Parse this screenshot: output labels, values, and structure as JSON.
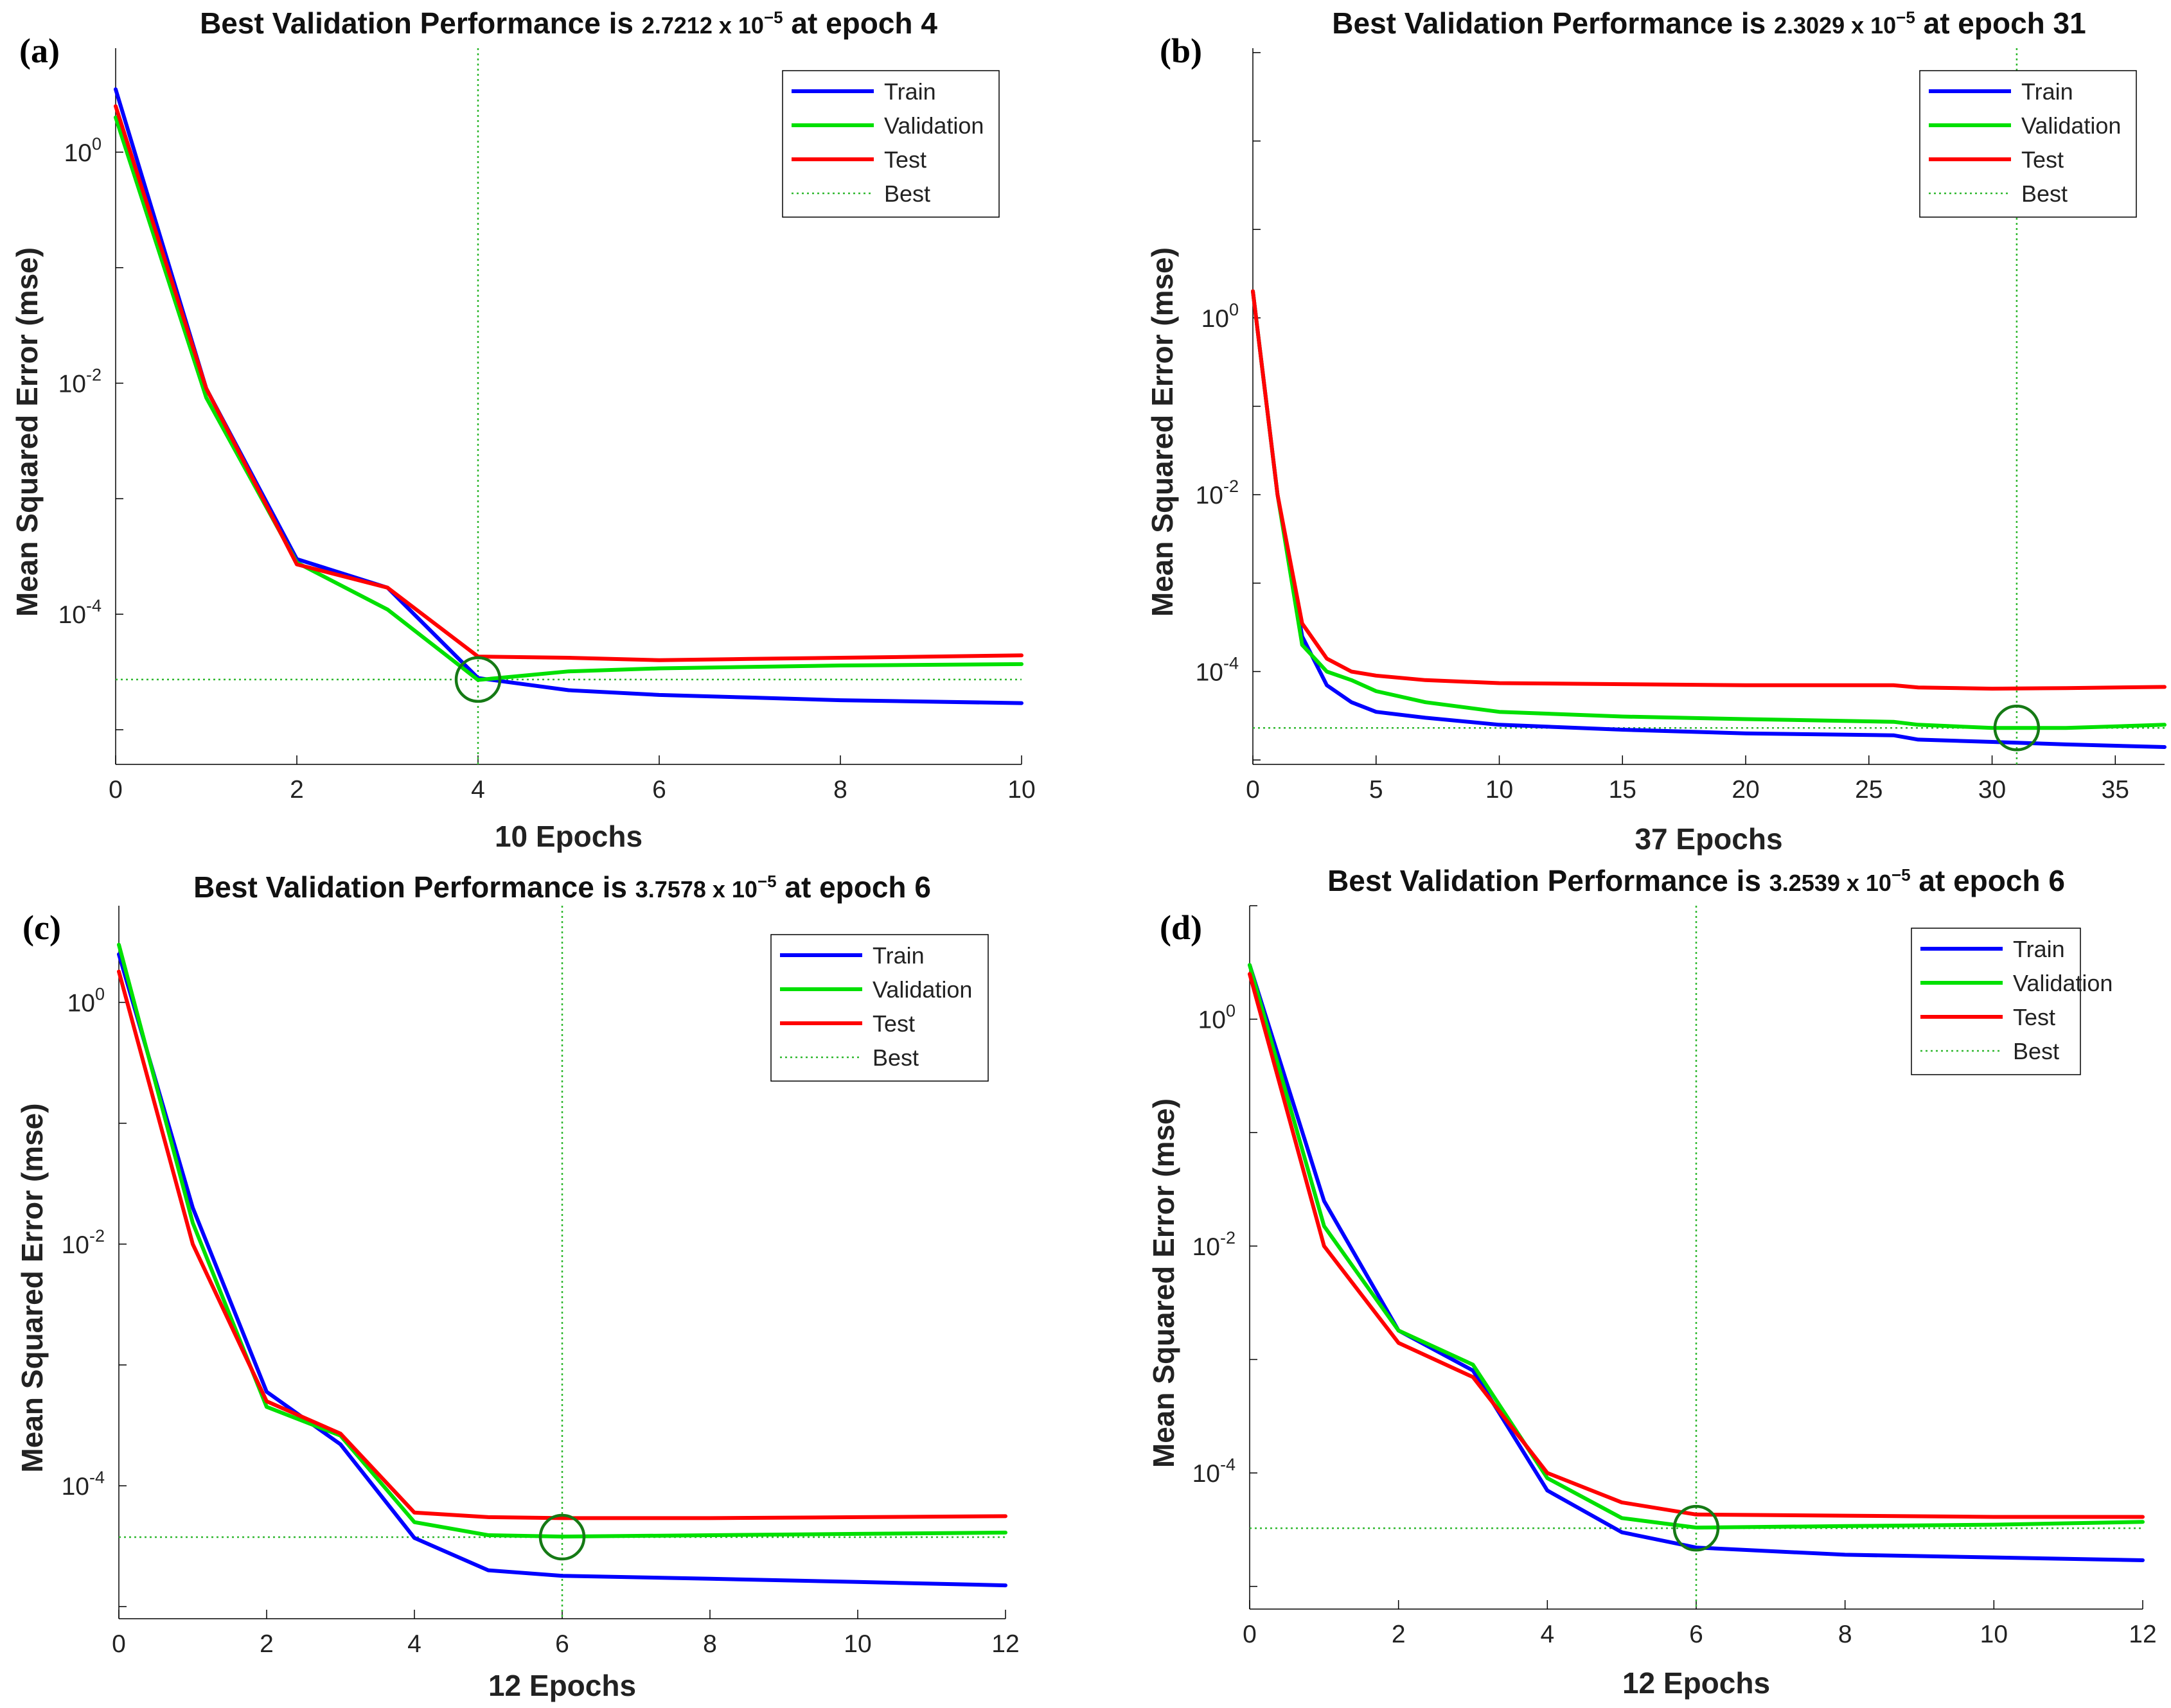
{
  "colors": {
    "train": "#0000ff",
    "validation": "#00e000",
    "test": "#ff0000",
    "best": "#2fb82f",
    "marker": "#157a15"
  },
  "legend_labels": [
    "Train",
    "Validation",
    "Test",
    "Best"
  ],
  "chart_data": [
    {
      "type": "line",
      "panel_label": "(a)",
      "title_prefix": "Best Validation Performance is",
      "title_mantissa": "2.7212",
      "title_times": "x",
      "title_base": "10",
      "title_exp": "−5",
      "title_suffix": "at epoch 4",
      "xlabel": "10 Epochs",
      "ylabel": "Mean Squared Error  (mse)",
      "xlim": [
        0,
        10
      ],
      "ylim_log10": [
        -5.3,
        0.9
      ],
      "xticks": [
        0,
        2,
        4,
        6,
        8,
        10
      ],
      "yticks_exp": [
        0,
        -2,
        -4
      ],
      "ytick_base": "10",
      "best_epoch": 4,
      "best_value": 2.7212e-05,
      "series": [
        {
          "name": "Train",
          "x": [
            0,
            1,
            2,
            3,
            4,
            5,
            6,
            7,
            8,
            10
          ],
          "values": [
            3.5,
            0.009,
            0.0003,
            0.00017,
            2.8e-05,
            2.2e-05,
            2e-05,
            1.9e-05,
            1.8e-05,
            1.7e-05
          ]
        },
        {
          "name": "Validation",
          "x": [
            0,
            1,
            2,
            3,
            4,
            5,
            6,
            7,
            8,
            10
          ],
          "values": [
            2.0,
            0.0075,
            0.00028,
            0.00011,
            2.7e-05,
            3.2e-05,
            3.4e-05,
            3.5e-05,
            3.6e-05,
            3.7e-05
          ]
        },
        {
          "name": "Test",
          "x": [
            0,
            1,
            2,
            3,
            4,
            5,
            6,
            7,
            8,
            10
          ],
          "values": [
            2.5,
            0.009,
            0.00027,
            0.00017,
            4.3e-05,
            4.2e-05,
            4e-05,
            4.1e-05,
            4.2e-05,
            4.4e-05
          ]
        }
      ]
    },
    {
      "type": "line",
      "panel_label": "(b)",
      "title_prefix": "Best Validation Performance is",
      "title_mantissa": "2.3029",
      "title_times": "x",
      "title_base": "10",
      "title_exp": "−5",
      "title_suffix": "at epoch 31",
      "xlabel": "37 Epochs",
      "ylabel": "Mean Squared Error  (mse)",
      "xlim": [
        0,
        37
      ],
      "ylim_log10": [
        -5.05,
        3.05
      ],
      "xticks": [
        0,
        5,
        10,
        15,
        20,
        25,
        30,
        35
      ],
      "yticks_exp": [
        0,
        -2,
        -4
      ],
      "ytick_base": "10",
      "best_epoch": 31,
      "best_value": 2.3029e-05,
      "series": [
        {
          "name": "Train",
          "x": [
            0,
            1,
            2,
            3,
            4,
            5,
            7,
            10,
            15,
            20,
            26,
            27,
            30,
            33,
            37
          ],
          "values": [
            2.0,
            0.01,
            0.00025,
            7e-05,
            4.5e-05,
            3.5e-05,
            3e-05,
            2.5e-05,
            2.2e-05,
            2e-05,
            1.9e-05,
            1.7e-05,
            1.6e-05,
            1.5e-05,
            1.4e-05
          ]
        },
        {
          "name": "Validation",
          "x": [
            0,
            1,
            2,
            3,
            4,
            5,
            7,
            10,
            15,
            20,
            26,
            27,
            30,
            31,
            33,
            37
          ],
          "values": [
            2.0,
            0.01,
            0.0002,
            0.0001,
            8e-05,
            6e-05,
            4.5e-05,
            3.5e-05,
            3.1e-05,
            2.9e-05,
            2.7e-05,
            2.5e-05,
            2.3e-05,
            2.3e-05,
            2.3e-05,
            2.5e-05
          ]
        },
        {
          "name": "Test",
          "x": [
            0,
            1,
            2,
            3,
            4,
            5,
            7,
            10,
            15,
            20,
            26,
            27,
            30,
            33,
            37
          ],
          "values": [
            2.0,
            0.01,
            0.00035,
            0.00014,
            0.0001,
            9e-05,
            8e-05,
            7.4e-05,
            7.2e-05,
            7e-05,
            7e-05,
            6.6e-05,
            6.4e-05,
            6.5e-05,
            6.7e-05
          ]
        }
      ]
    },
    {
      "type": "line",
      "panel_label": "(c)",
      "title_prefix": "Best Validation Performance is",
      "title_mantissa": "3.7578",
      "title_times": "x",
      "title_base": "10",
      "title_exp": "−5",
      "title_suffix": "at epoch 6",
      "xlabel": "12 Epochs",
      "ylabel": "Mean Squared Error  (mse)",
      "xlim": [
        0,
        12
      ],
      "ylim_log10": [
        -5.1,
        0.8
      ],
      "xticks": [
        0,
        2,
        4,
        6,
        8,
        10,
        12
      ],
      "yticks_exp": [
        0,
        -2,
        -4
      ],
      "ytick_base": "10",
      "best_epoch": 6,
      "best_value": 3.7578e-05,
      "series": [
        {
          "name": "Train",
          "x": [
            0,
            1,
            2,
            3,
            4,
            5,
            6,
            8,
            10,
            12
          ],
          "values": [
            2.5,
            0.02,
            0.0006,
            0.00022,
            3.7e-05,
            2e-05,
            1.8e-05,
            1.7e-05,
            1.6e-05,
            1.5e-05
          ]
        },
        {
          "name": "Validation",
          "x": [
            0,
            1,
            2,
            3,
            4,
            5,
            6,
            8,
            10,
            12
          ],
          "values": [
            3.0,
            0.015,
            0.00045,
            0.00026,
            5e-05,
            3.9e-05,
            3.8e-05,
            3.9e-05,
            4e-05,
            4.1e-05
          ]
        },
        {
          "name": "Test",
          "x": [
            0,
            1,
            2,
            3,
            4,
            5,
            6,
            8,
            10,
            12
          ],
          "values": [
            1.8,
            0.01,
            0.0005,
            0.00027,
            6e-05,
            5.5e-05,
            5.4e-05,
            5.4e-05,
            5.5e-05,
            5.6e-05
          ]
        }
      ]
    },
    {
      "type": "line",
      "panel_label": "(d)",
      "title_prefix": "Best Validation Performance is",
      "title_mantissa": "3.2539",
      "title_times": "x",
      "title_base": "10",
      "title_exp": "−5",
      "title_suffix": "at epoch 6",
      "xlabel": "12 Epochs",
      "ylabel": "Mean Squared Error  (mse)",
      "xlim": [
        0,
        12
      ],
      "ylim_log10": [
        -5.2,
        1.0
      ],
      "xticks": [
        0,
        2,
        4,
        6,
        8,
        10,
        12
      ],
      "yticks_exp": [
        0,
        -2,
        -4
      ],
      "ytick_base": "10",
      "best_epoch": 6,
      "best_value": 3.2539e-05,
      "series": [
        {
          "name": "Train",
          "x": [
            0,
            1,
            2,
            3,
            4,
            5,
            6,
            8,
            10,
            12
          ],
          "values": [
            3.0,
            0.025,
            0.0018,
            0.0008,
            7e-05,
            3e-05,
            2.2e-05,
            1.9e-05,
            1.8e-05,
            1.7e-05
          ]
        },
        {
          "name": "Validation",
          "x": [
            0,
            1,
            2,
            3,
            4,
            5,
            6,
            8,
            10,
            12
          ],
          "values": [
            3.0,
            0.015,
            0.0018,
            0.0009,
            9e-05,
            4e-05,
            3.3e-05,
            3.4e-05,
            3.5e-05,
            3.7e-05
          ]
        },
        {
          "name": "Test",
          "x": [
            0,
            1,
            2,
            3,
            4,
            5,
            6,
            8,
            10,
            12
          ],
          "values": [
            2.5,
            0.01,
            0.0014,
            0.0007,
            0.0001,
            5.5e-05,
            4.3e-05,
            4.2e-05,
            4.1e-05,
            4.1e-05
          ]
        }
      ]
    }
  ]
}
